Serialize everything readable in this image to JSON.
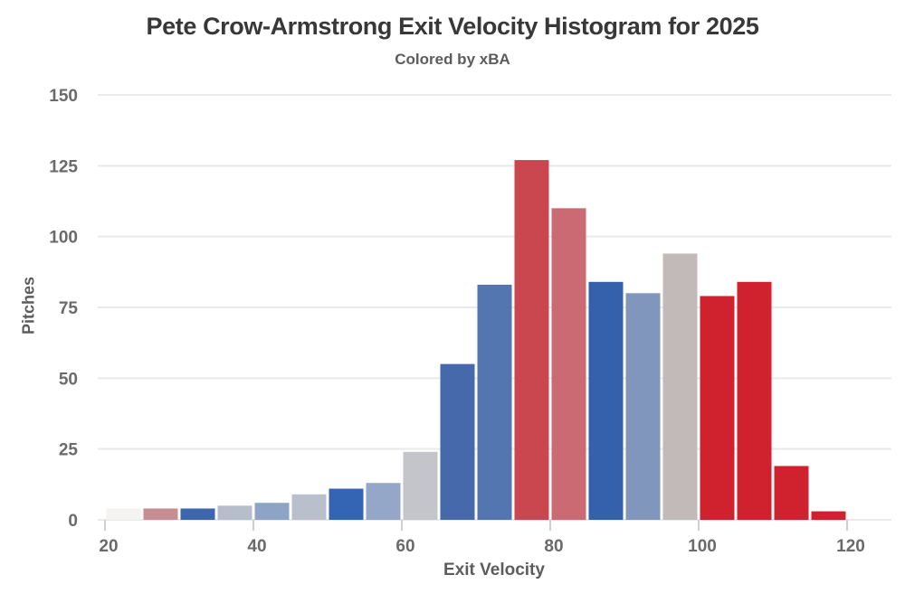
{
  "chart_data": {
    "type": "bar",
    "title": "Pete Crow-Armstrong Exit Velocity Histogram for 2025",
    "subtitle": "Colored by xBA",
    "xlabel": "Exit Velocity",
    "ylabel": "Pitches",
    "xlim": [
      19,
      126
    ],
    "ylim": [
      0,
      150
    ],
    "x_ticks": [
      20,
      40,
      60,
      80,
      100,
      120
    ],
    "y_ticks": [
      0,
      25,
      50,
      75,
      100,
      125,
      150
    ],
    "grid": "horizontal",
    "legend": "none",
    "bin_width": 5,
    "bins": [
      {
        "range": [
          20,
          25
        ],
        "count": 4,
        "color": "#f5f3f2"
      },
      {
        "range": [
          25,
          30
        ],
        "count": 4,
        "color": "#c68e92"
      },
      {
        "range": [
          30,
          35
        ],
        "count": 4,
        "color": "#3d66ae"
      },
      {
        "range": [
          35,
          40
        ],
        "count": 5,
        "color": "#b7becb"
      },
      {
        "range": [
          40,
          45
        ],
        "count": 6,
        "color": "#8da4c6"
      },
      {
        "range": [
          45,
          50
        ],
        "count": 9,
        "color": "#b9c0cc"
      },
      {
        "range": [
          50,
          55
        ],
        "count": 11,
        "color": "#3465b5"
      },
      {
        "range": [
          55,
          60
        ],
        "count": 13,
        "color": "#94a7c8"
      },
      {
        "range": [
          60,
          65
        ],
        "count": 24,
        "color": "#c3c5cb"
      },
      {
        "range": [
          65,
          70
        ],
        "count": 55,
        "color": "#4569ab"
      },
      {
        "range": [
          70,
          75
        ],
        "count": 83,
        "color": "#5376b0"
      },
      {
        "range": [
          75,
          80
        ],
        "count": 127,
        "color": "#cb4750"
      },
      {
        "range": [
          80,
          85
        ],
        "count": 110,
        "color": "#cb6a72"
      },
      {
        "range": [
          85,
          90
        ],
        "count": 84,
        "color": "#3560ab"
      },
      {
        "range": [
          90,
          95
        ],
        "count": 80,
        "color": "#8096bd"
      },
      {
        "range": [
          95,
          100
        ],
        "count": 94,
        "color": "#c2bab9"
      },
      {
        "range": [
          100,
          105
        ],
        "count": 79,
        "color": "#d0212e"
      },
      {
        "range": [
          105,
          110
        ],
        "count": 84,
        "color": "#d0212e"
      },
      {
        "range": [
          110,
          115
        ],
        "count": 19,
        "color": "#d0212e"
      },
      {
        "range": [
          115,
          120
        ],
        "count": 3,
        "color": "#d0212e"
      }
    ],
    "style_colors": {
      "gridline": "#eaeaec",
      "tick_mark": "#cfcfd2",
      "tick_label": "#6a6a6a",
      "title_text": "#383838",
      "subtitle_text": "#5c5c5c",
      "background": "#ffffff"
    }
  }
}
